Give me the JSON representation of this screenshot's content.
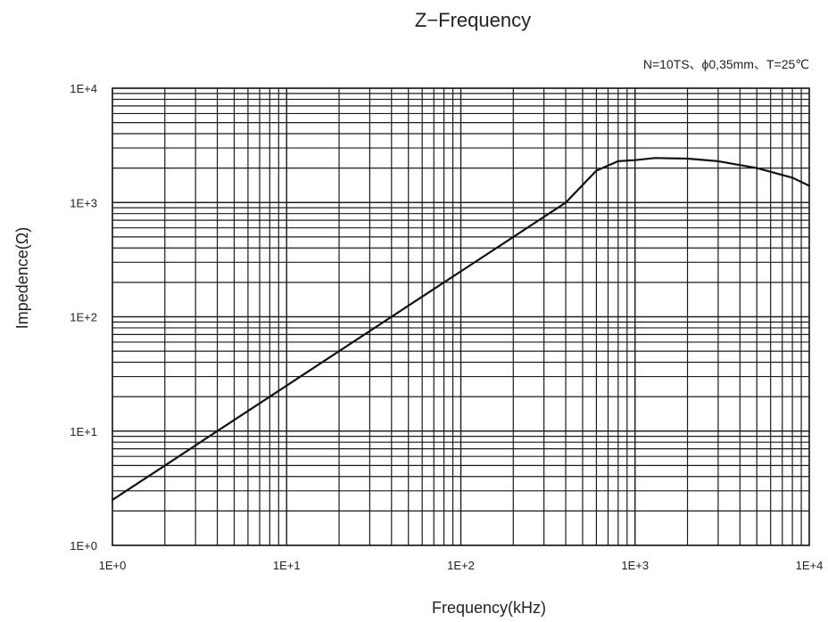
{
  "chart_data": {
    "type": "line",
    "title": "Z−Frequency",
    "subtitle": "N=10TS、ϕ0,35mm、T=25℃",
    "xlabel": "Frequency(kHz)",
    "ylabel": "Impedence(Ω)",
    "xscale": "log",
    "yscale": "log",
    "xlim": [
      1,
      10000
    ],
    "ylim": [
      1,
      10000
    ],
    "grid": true,
    "xticks": [
      {
        "value": 1,
        "label": "1E+0"
      },
      {
        "value": 10,
        "label": "1E+1"
      },
      {
        "value": 100,
        "label": "1E+2"
      },
      {
        "value": 1000,
        "label": "1E+3"
      },
      {
        "value": 10000,
        "label": "1E+4"
      }
    ],
    "yticks": [
      {
        "value": 1,
        "label": "1E+0"
      },
      {
        "value": 10,
        "label": "1E+1"
      },
      {
        "value": 100,
        "label": "1E+2"
      },
      {
        "value": 1000,
        "label": "1E+3"
      },
      {
        "value": 10000,
        "label": "1E+4"
      }
    ],
    "series": [
      {
        "x": [
          1,
          2,
          5,
          10,
          20,
          50,
          100,
          200,
          400,
          600,
          800,
          1000,
          1300,
          2000,
          3000,
          5000,
          8000,
          10000
        ],
        "y": [
          2.5,
          5,
          12.5,
          25,
          50,
          125,
          250,
          500,
          1000,
          1900,
          2300,
          2350,
          2450,
          2420,
          2300,
          2000,
          1650,
          1400
        ]
      }
    ]
  }
}
